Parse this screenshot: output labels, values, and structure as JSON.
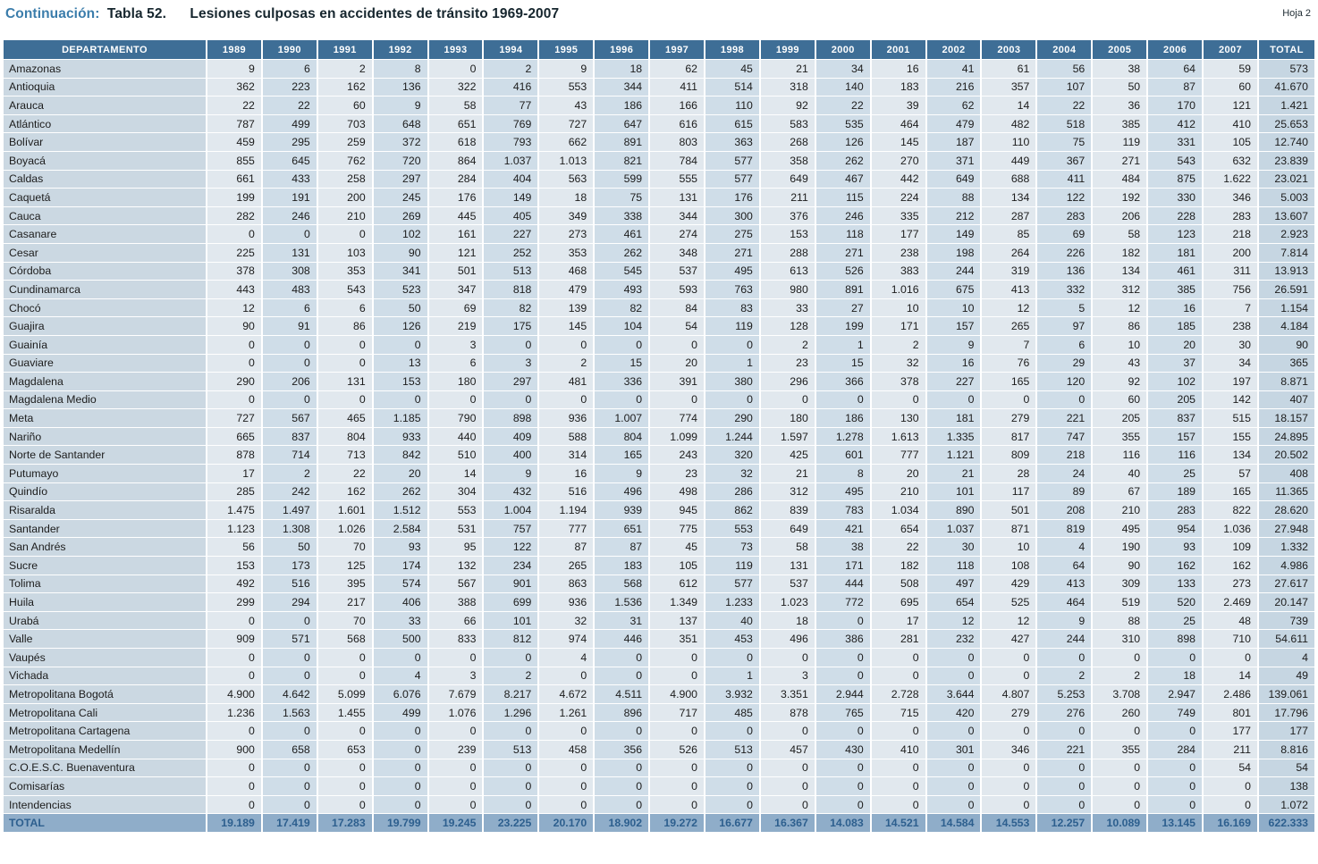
{
  "page": {
    "continuation_label": "Continuación:",
    "table_number": "Tabla 52.",
    "title": "Lesiones culposas en accidentes de tránsito 1969-2007",
    "sheet_label": "Hoja 2"
  },
  "colors": {
    "header_bg": "#3e6e96",
    "name_col_bg": "#cbd8e2",
    "col_light": "#e1e8ee",
    "col_dark": "#cfdde8",
    "total_col_bg": "#c6d6e2",
    "total_row_bg": "#8fadc9",
    "total_row_text": "#2d5f8e",
    "title_accent": "#3b7dab",
    "title_text": "#16262e"
  },
  "table": {
    "columns": [
      "DEPARTAMENTO",
      "1989",
      "1990",
      "1991",
      "1992",
      "1993",
      "1994",
      "1995",
      "1996",
      "1997",
      "1998",
      "1999",
      "2000",
      "2001",
      "2002",
      "2003",
      "2004",
      "2005",
      "2006",
      "2007",
      "TOTAL"
    ],
    "rows": [
      {
        "name": "Amazonas",
        "values": [
          "9",
          "6",
          "2",
          "8",
          "0",
          "2",
          "9",
          "18",
          "62",
          "45",
          "21",
          "34",
          "16",
          "41",
          "61",
          "56",
          "38",
          "64",
          "59"
        ],
        "total": "573"
      },
      {
        "name": "Antioquia",
        "values": [
          "362",
          "223",
          "162",
          "136",
          "322",
          "416",
          "553",
          "344",
          "411",
          "514",
          "318",
          "140",
          "183",
          "216",
          "357",
          "107",
          "50",
          "87",
          "60"
        ],
        "total": "41.670"
      },
      {
        "name": "Arauca",
        "values": [
          "22",
          "22",
          "60",
          "9",
          "58",
          "77",
          "43",
          "186",
          "166",
          "110",
          "92",
          "22",
          "39",
          "62",
          "14",
          "22",
          "36",
          "170",
          "121"
        ],
        "total": "1.421"
      },
      {
        "name": "Atlántico",
        "values": [
          "787",
          "499",
          "703",
          "648",
          "651",
          "769",
          "727",
          "647",
          "616",
          "615",
          "583",
          "535",
          "464",
          "479",
          "482",
          "518",
          "385",
          "412",
          "410"
        ],
        "total": "25.653"
      },
      {
        "name": "Bolívar",
        "values": [
          "459",
          "295",
          "259",
          "372",
          "618",
          "793",
          "662",
          "891",
          "803",
          "363",
          "268",
          "126",
          "145",
          "187",
          "110",
          "75",
          "119",
          "331",
          "105"
        ],
        "total": "12.740"
      },
      {
        "name": "Boyacá",
        "values": [
          "855",
          "645",
          "762",
          "720",
          "864",
          "1.037",
          "1.013",
          "821",
          "784",
          "577",
          "358",
          "262",
          "270",
          "371",
          "449",
          "367",
          "271",
          "543",
          "632"
        ],
        "total": "23.839"
      },
      {
        "name": "Caldas",
        "values": [
          "661",
          "433",
          "258",
          "297",
          "284",
          "404",
          "563",
          "599",
          "555",
          "577",
          "649",
          "467",
          "442",
          "649",
          "688",
          "411",
          "484",
          "875",
          "1.622"
        ],
        "total": "23.021"
      },
      {
        "name": "Caquetá",
        "values": [
          "199",
          "191",
          "200",
          "245",
          "176",
          "149",
          "18",
          "75",
          "131",
          "176",
          "211",
          "115",
          "224",
          "88",
          "134",
          "122",
          "192",
          "330",
          "346"
        ],
        "total": "5.003"
      },
      {
        "name": "Cauca",
        "values": [
          "282",
          "246",
          "210",
          "269",
          "445",
          "405",
          "349",
          "338",
          "344",
          "300",
          "376",
          "246",
          "335",
          "212",
          "287",
          "283",
          "206",
          "228",
          "283"
        ],
        "total": "13.607"
      },
      {
        "name": "Casanare",
        "values": [
          "0",
          "0",
          "0",
          "102",
          "161",
          "227",
          "273",
          "461",
          "274",
          "275",
          "153",
          "118",
          "177",
          "149",
          "85",
          "69",
          "58",
          "123",
          "218"
        ],
        "total": "2.923"
      },
      {
        "name": "Cesar",
        "values": [
          "225",
          "131",
          "103",
          "90",
          "121",
          "252",
          "353",
          "262",
          "348",
          "271",
          "288",
          "271",
          "238",
          "198",
          "264",
          "226",
          "182",
          "181",
          "200"
        ],
        "total": "7.814"
      },
      {
        "name": "Córdoba",
        "values": [
          "378",
          "308",
          "353",
          "341",
          "501",
          "513",
          "468",
          "545",
          "537",
          "495",
          "613",
          "526",
          "383",
          "244",
          "319",
          "136",
          "134",
          "461",
          "311"
        ],
        "total": "13.913"
      },
      {
        "name": "Cundinamarca",
        "values": [
          "443",
          "483",
          "543",
          "523",
          "347",
          "818",
          "479",
          "493",
          "593",
          "763",
          "980",
          "891",
          "1.016",
          "675",
          "413",
          "332",
          "312",
          "385",
          "756"
        ],
        "total": "26.591"
      },
      {
        "name": "Chocó",
        "values": [
          "12",
          "6",
          "6",
          "50",
          "69",
          "82",
          "139",
          "82",
          "84",
          "83",
          "33",
          "27",
          "10",
          "10",
          "12",
          "5",
          "12",
          "16",
          "7"
        ],
        "total": "1.154"
      },
      {
        "name": "Guajira",
        "values": [
          "90",
          "91",
          "86",
          "126",
          "219",
          "175",
          "145",
          "104",
          "54",
          "119",
          "128",
          "199",
          "171",
          "157",
          "265",
          "97",
          "86",
          "185",
          "238"
        ],
        "total": "4.184"
      },
      {
        "name": "Guainía",
        "values": [
          "0",
          "0",
          "0",
          "0",
          "3",
          "0",
          "0",
          "0",
          "0",
          "0",
          "2",
          "1",
          "2",
          "9",
          "7",
          "6",
          "10",
          "20",
          "30"
        ],
        "total": "90"
      },
      {
        "name": "Guaviare",
        "values": [
          "0",
          "0",
          "0",
          "13",
          "6",
          "3",
          "2",
          "15",
          "20",
          "1",
          "23",
          "15",
          "32",
          "16",
          "76",
          "29",
          "43",
          "37",
          "34"
        ],
        "total": "365"
      },
      {
        "name": "Magdalena",
        "values": [
          "290",
          "206",
          "131",
          "153",
          "180",
          "297",
          "481",
          "336",
          "391",
          "380",
          "296",
          "366",
          "378",
          "227",
          "165",
          "120",
          "92",
          "102",
          "197"
        ],
        "total": "8.871"
      },
      {
        "name": "Magdalena Medio",
        "values": [
          "0",
          "0",
          "0",
          "0",
          "0",
          "0",
          "0",
          "0",
          "0",
          "0",
          "0",
          "0",
          "0",
          "0",
          "0",
          "0",
          "60",
          "205",
          "142"
        ],
        "total": "407"
      },
      {
        "name": "Meta",
        "values": [
          "727",
          "567",
          "465",
          "1.185",
          "790",
          "898",
          "936",
          "1.007",
          "774",
          "290",
          "180",
          "186",
          "130",
          "181",
          "279",
          "221",
          "205",
          "837",
          "515"
        ],
        "total": "18.157"
      },
      {
        "name": "Nariño",
        "values": [
          "665",
          "837",
          "804",
          "933",
          "440",
          "409",
          "588",
          "804",
          "1.099",
          "1.244",
          "1.597",
          "1.278",
          "1.613",
          "1.335",
          "817",
          "747",
          "355",
          "157",
          "155"
        ],
        "total": "24.895"
      },
      {
        "name": "Norte de Santander",
        "values": [
          "878",
          "714",
          "713",
          "842",
          "510",
          "400",
          "314",
          "165",
          "243",
          "320",
          "425",
          "601",
          "777",
          "1.121",
          "809",
          "218",
          "116",
          "116",
          "134"
        ],
        "total": "20.502"
      },
      {
        "name": "Putumayo",
        "values": [
          "17",
          "2",
          "22",
          "20",
          "14",
          "9",
          "16",
          "9",
          "23",
          "32",
          "21",
          "8",
          "20",
          "21",
          "28",
          "24",
          "40",
          "25",
          "57"
        ],
        "total": "408"
      },
      {
        "name": "Quindío",
        "values": [
          "285",
          "242",
          "162",
          "262",
          "304",
          "432",
          "516",
          "496",
          "498",
          "286",
          "312",
          "495",
          "210",
          "101",
          "117",
          "89",
          "67",
          "189",
          "165"
        ],
        "total": "11.365"
      },
      {
        "name": "Risaralda",
        "values": [
          "1.475",
          "1.497",
          "1.601",
          "1.512",
          "553",
          "1.004",
          "1.194",
          "939",
          "945",
          "862",
          "839",
          "783",
          "1.034",
          "890",
          "501",
          "208",
          "210",
          "283",
          "822"
        ],
        "total": "28.620"
      },
      {
        "name": "Santander",
        "values": [
          "1.123",
          "1.308",
          "1.026",
          "2.584",
          "531",
          "757",
          "777",
          "651",
          "775",
          "553",
          "649",
          "421",
          "654",
          "1.037",
          "871",
          "819",
          "495",
          "954",
          "1.036"
        ],
        "total": "27.948"
      },
      {
        "name": "San Andrés",
        "values": [
          "56",
          "50",
          "70",
          "93",
          "95",
          "122",
          "87",
          "87",
          "45",
          "73",
          "58",
          "38",
          "22",
          "30",
          "10",
          "4",
          "190",
          "93",
          "109"
        ],
        "total": "1.332"
      },
      {
        "name": "Sucre",
        "values": [
          "153",
          "173",
          "125",
          "174",
          "132",
          "234",
          "265",
          "183",
          "105",
          "119",
          "131",
          "171",
          "182",
          "118",
          "108",
          "64",
          "90",
          "162",
          "162"
        ],
        "total": "4.986"
      },
      {
        "name": "Tolima",
        "values": [
          "492",
          "516",
          "395",
          "574",
          "567",
          "901",
          "863",
          "568",
          "612",
          "577",
          "537",
          "444",
          "508",
          "497",
          "429",
          "413",
          "309",
          "133",
          "273"
        ],
        "total": "27.617"
      },
      {
        "name": "Huila",
        "values": [
          "299",
          "294",
          "217",
          "406",
          "388",
          "699",
          "936",
          "1.536",
          "1.349",
          "1.233",
          "1.023",
          "772",
          "695",
          "654",
          "525",
          "464",
          "519",
          "520",
          "2.469"
        ],
        "total": "20.147"
      },
      {
        "name": "Urabá",
        "values": [
          "0",
          "0",
          "70",
          "33",
          "66",
          "101",
          "32",
          "31",
          "137",
          "40",
          "18",
          "0",
          "17",
          "12",
          "12",
          "9",
          "88",
          "25",
          "48"
        ],
        "total": "739"
      },
      {
        "name": "Valle",
        "values": [
          "909",
          "571",
          "568",
          "500",
          "833",
          "812",
          "974",
          "446",
          "351",
          "453",
          "496",
          "386",
          "281",
          "232",
          "427",
          "244",
          "310",
          "898",
          "710"
        ],
        "total": "54.611"
      },
      {
        "name": "Vaupés",
        "values": [
          "0",
          "0",
          "0",
          "0",
          "0",
          "0",
          "4",
          "0",
          "0",
          "0",
          "0",
          "0",
          "0",
          "0",
          "0",
          "0",
          "0",
          "0",
          "0"
        ],
        "total": "4"
      },
      {
        "name": "Vichada",
        "values": [
          "0",
          "0",
          "0",
          "4",
          "3",
          "2",
          "0",
          "0",
          "0",
          "1",
          "3",
          "0",
          "0",
          "0",
          "0",
          "2",
          "2",
          "18",
          "14"
        ],
        "total": "49"
      },
      {
        "name": "Metropolitana Bogotá",
        "values": [
          "4.900",
          "4.642",
          "5.099",
          "6.076",
          "7.679",
          "8.217",
          "4.672",
          "4.511",
          "4.900",
          "3.932",
          "3.351",
          "2.944",
          "2.728",
          "3.644",
          "4.807",
          "5.253",
          "3.708",
          "2.947",
          "2.486"
        ],
        "total": "139.061"
      },
      {
        "name": "Metropolitana Cali",
        "values": [
          "1.236",
          "1.563",
          "1.455",
          "499",
          "1.076",
          "1.296",
          "1.261",
          "896",
          "717",
          "485",
          "878",
          "765",
          "715",
          "420",
          "279",
          "276",
          "260",
          "749",
          "801"
        ],
        "total": "17.796"
      },
      {
        "name": "Metropolitana Cartagena",
        "values": [
          "0",
          "0",
          "0",
          "0",
          "0",
          "0",
          "0",
          "0",
          "0",
          "0",
          "0",
          "0",
          "0",
          "0",
          "0",
          "0",
          "0",
          "0",
          "177"
        ],
        "total": "177"
      },
      {
        "name": "Metropolitana Medellín",
        "values": [
          "900",
          "658",
          "653",
          "0",
          "239",
          "513",
          "458",
          "356",
          "526",
          "513",
          "457",
          "430",
          "410",
          "301",
          "346",
          "221",
          "355",
          "284",
          "211"
        ],
        "total": "8.816"
      },
      {
        "name": "C.O.E.S.C. Buenaventura",
        "values": [
          "0",
          "0",
          "0",
          "0",
          "0",
          "0",
          "0",
          "0",
          "0",
          "0",
          "0",
          "0",
          "0",
          "0",
          "0",
          "0",
          "0",
          "0",
          "54"
        ],
        "total": "54"
      },
      {
        "name": "Comisarías",
        "values": [
          "0",
          "0",
          "0",
          "0",
          "0",
          "0",
          "0",
          "0",
          "0",
          "0",
          "0",
          "0",
          "0",
          "0",
          "0",
          "0",
          "0",
          "0",
          "0"
        ],
        "total": "138"
      },
      {
        "name": "Intendencias",
        "values": [
          "0",
          "0",
          "0",
          "0",
          "0",
          "0",
          "0",
          "0",
          "0",
          "0",
          "0",
          "0",
          "0",
          "0",
          "0",
          "0",
          "0",
          "0",
          "0"
        ],
        "total": "1.072"
      }
    ],
    "total_row": {
      "label": "TOTAL",
      "values": [
        "19.189",
        "17.419",
        "17.283",
        "19.799",
        "19.245",
        "23.225",
        "20.170",
        "18.902",
        "19.272",
        "16.677",
        "16.367",
        "14.083",
        "14.521",
        "14.584",
        "14.553",
        "12.257",
        "10.089",
        "13.145",
        "16.169"
      ],
      "total": "622.333"
    }
  }
}
